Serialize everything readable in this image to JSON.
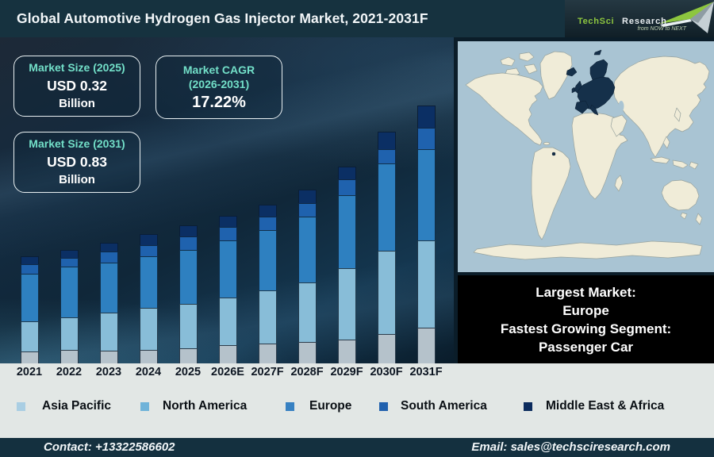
{
  "header": {
    "title": "Global Automotive Hydrogen Gas Injector Market, 2021-2031F",
    "logo": {
      "brand_first": "TechSci",
      "brand_second": "Research",
      "tagline": "from NOW to NEXT"
    }
  },
  "info_boxes": [
    {
      "label": "Market Size (2025)",
      "value": "USD 0.32",
      "unit": "Billion"
    },
    {
      "label": "Market CAGR\n(2026-2031)",
      "value": "17.22%",
      "unit": ""
    },
    {
      "label": "Market Size (2031)",
      "value": "USD 0.83",
      "unit": "Billion"
    }
  ],
  "chart_data": {
    "type": "bar",
    "stacked": true,
    "title": "Global Automotive Hydrogen Gas Injector Market, 2021-2031F",
    "categories": [
      "2021",
      "2022",
      "2023",
      "2024",
      "2025",
      "2026E",
      "2027F",
      "2028F",
      "2029F",
      "2030F",
      "2031F"
    ],
    "unit": "relative stacked height (px, no y-axis shown)",
    "series": [
      {
        "name": "Asia Pacific",
        "color": "#b5c2cb",
        "legend_color": "#a9cee3",
        "values": [
          15,
          17,
          16,
          17,
          19,
          23,
          25,
          27,
          30,
          37,
          45
        ]
      },
      {
        "name": "North America",
        "color": "#88bdd8",
        "legend_color": "#6fb3d9",
        "values": [
          38,
          41,
          48,
          53,
          56,
          60,
          67,
          75,
          90,
          105,
          110
        ]
      },
      {
        "name": "Europe",
        "color": "#2e80c0",
        "legend_color": "#3781c2",
        "values": [
          60,
          64,
          63,
          65,
          68,
          72,
          76,
          83,
          92,
          110,
          115
        ]
      },
      {
        "name": "South America",
        "color": "#1f62ae",
        "legend_color": "#2161ae",
        "values": [
          12,
          11,
          14,
          14,
          17,
          17,
          17,
          17,
          20,
          18,
          27
        ]
      },
      {
        "name": "Middle East & Africa",
        "color": "#0b2f64",
        "legend_color": "#0c2c5e",
        "values": [
          10,
          10,
          11,
          14,
          14,
          14,
          15,
          17,
          16,
          22,
          28
        ]
      }
    ],
    "annotations": {
      "market_size_2025_usd_billion": 0.32,
      "market_size_2031_usd_billion": 0.83,
      "cagr_2026_2031_percent": 17.22
    },
    "legend_position": "bottom",
    "grid": false
  },
  "map_panel": {
    "highlighted_region": "Europe",
    "lines": [
      "Largest Market:",
      "Europe",
      "Fastest Growing Segment:",
      "Passenger Car"
    ]
  },
  "footer": {
    "contact": "Contact: +13322586602",
    "email": "Email: sales@techsciresearch.com"
  }
}
